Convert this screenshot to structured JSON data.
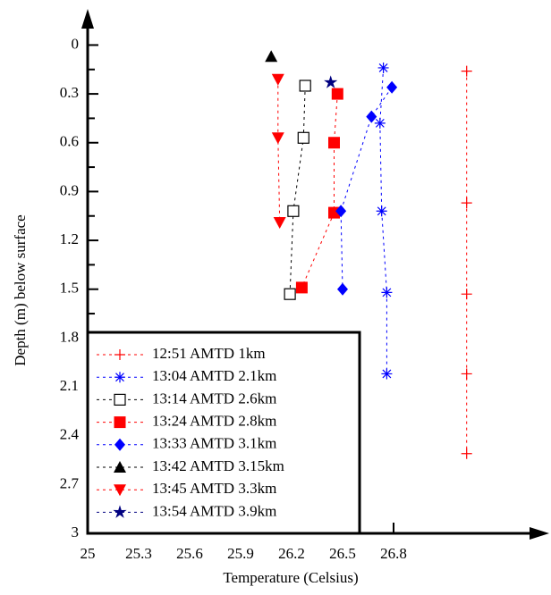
{
  "chart_data": {
    "type": "scatter-line",
    "xlabel": "Temperature (Celsius)",
    "ylabel": "Depth (m) below surface",
    "xlim": [
      25,
      27.7
    ],
    "ylim": [
      -0.2,
      3
    ],
    "y_inverted": true,
    "xticks": [
      25,
      25.3,
      25.6,
      25.9,
      26.2,
      26.5,
      26.8
    ],
    "yticks": [
      0,
      0.3,
      0.6,
      0.9,
      1.2,
      1.5,
      1.8,
      2.1,
      2.4,
      2.7,
      3
    ],
    "yminor_ticks": [
      0.15,
      0.45,
      0.75,
      1.05,
      1.35,
      1.65,
      1.95,
      2.25,
      2.55,
      2.85
    ],
    "legend": "lower left",
    "series": [
      {
        "name": "12:51 AMTD 1km",
        "color": "#ff0000",
        "marker": "plus",
        "x": [
          27.23,
          27.23,
          27.23,
          27.23,
          27.23
        ],
        "values": [
          0.16,
          0.97,
          1.53,
          2.02,
          2.51
        ]
      },
      {
        "name": "13:04 AMTD 2.1km",
        "color": "#0000ff",
        "marker": "asterisk",
        "x": [
          26.74,
          26.72,
          26.73,
          26.76,
          26.76
        ],
        "values": [
          0.14,
          0.48,
          1.02,
          1.52,
          2.02
        ]
      },
      {
        "name": "13:14 AMTD 2.6km",
        "color": "#000000",
        "marker": "open-square",
        "x": [
          26.28,
          26.27,
          26.21,
          26.19
        ],
        "values": [
          0.25,
          0.57,
          1.02,
          1.53
        ]
      },
      {
        "name": "13:24 AMTD 2.8km",
        "color": "#ff0000",
        "marker": "filled-square",
        "x": [
          26.47,
          26.45,
          26.45,
          26.26
        ],
        "values": [
          0.3,
          0.6,
          1.03,
          1.49
        ]
      },
      {
        "name": "13:33 AMTD 3.1km",
        "color": "#0000ff",
        "marker": "diamond",
        "x": [
          26.79,
          26.67,
          26.49,
          26.5
        ],
        "values": [
          0.26,
          0.44,
          1.02,
          1.5
        ]
      },
      {
        "name": "13:42 AMTD 3.15km",
        "color": "#000000",
        "marker": "triangle-up",
        "x": [
          26.08
        ],
        "values": [
          0.07
        ]
      },
      {
        "name": "13:45 AMTD 3.3km",
        "color": "#ff0000",
        "marker": "triangle-down",
        "x": [
          26.12,
          26.12,
          26.13
        ],
        "values": [
          0.21,
          0.57,
          1.09
        ]
      },
      {
        "name": "13:54 AMTD 3.9km",
        "color": "#000080",
        "marker": "star",
        "x": [
          26.43
        ],
        "values": [
          0.23
        ]
      }
    ]
  }
}
